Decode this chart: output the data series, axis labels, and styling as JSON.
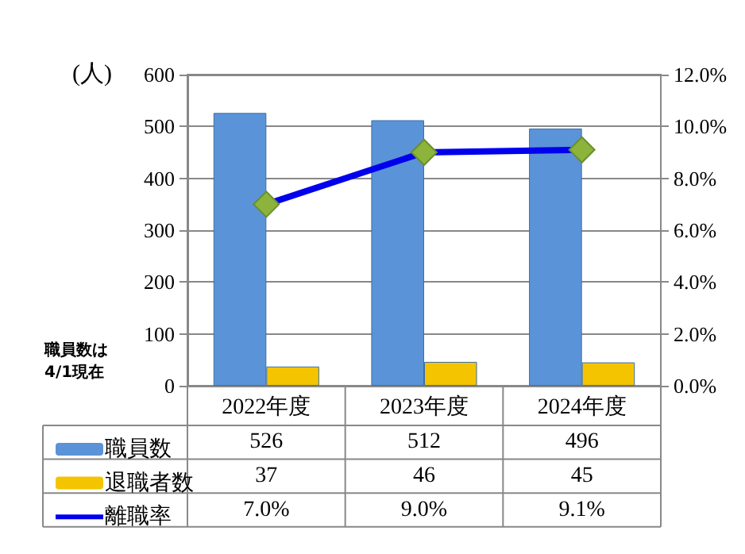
{
  "chart_data": {
    "type": "bar",
    "ylabel": "(人)",
    "categories": [
      "2022年度",
      "2023年度",
      "2024年度"
    ],
    "series": [
      {
        "name": "職員数",
        "color": "#5b93d8",
        "values": [
          526,
          512,
          496
        ]
      },
      {
        "name": "退職者数",
        "color": "#f5c400",
        "values": [
          37,
          46,
          45
        ]
      },
      {
        "name": "離職率",
        "type": "line",
        "axis": "y2",
        "color": "#0000ee",
        "values": [
          7.0,
          9.0,
          9.1
        ],
        "value_labels": [
          "7.0%",
          "9.0%",
          "9.1%"
        ]
      }
    ],
    "ylim": [
      0,
      600
    ],
    "yticks": [
      0,
      100,
      200,
      300,
      400,
      500,
      600
    ],
    "y2lim": [
      0,
      12
    ],
    "y2ticks": [
      {
        "value": 0,
        "label": "0.0%"
      },
      {
        "value": 2,
        "label": "2.0%"
      },
      {
        "value": 4,
        "label": "4.0%"
      },
      {
        "value": 6,
        "label": "6.0%"
      },
      {
        "value": 8,
        "label": "8.0%"
      },
      {
        "value": 10,
        "label": "10.0%"
      },
      {
        "value": 12,
        "label": "12.0%"
      }
    ],
    "grid": "y",
    "legend": "bottom",
    "data_labels": true,
    "marker": "diamond",
    "line_style": "solid",
    "annotations": [
      "職員数は\n4/1現在"
    ]
  }
}
